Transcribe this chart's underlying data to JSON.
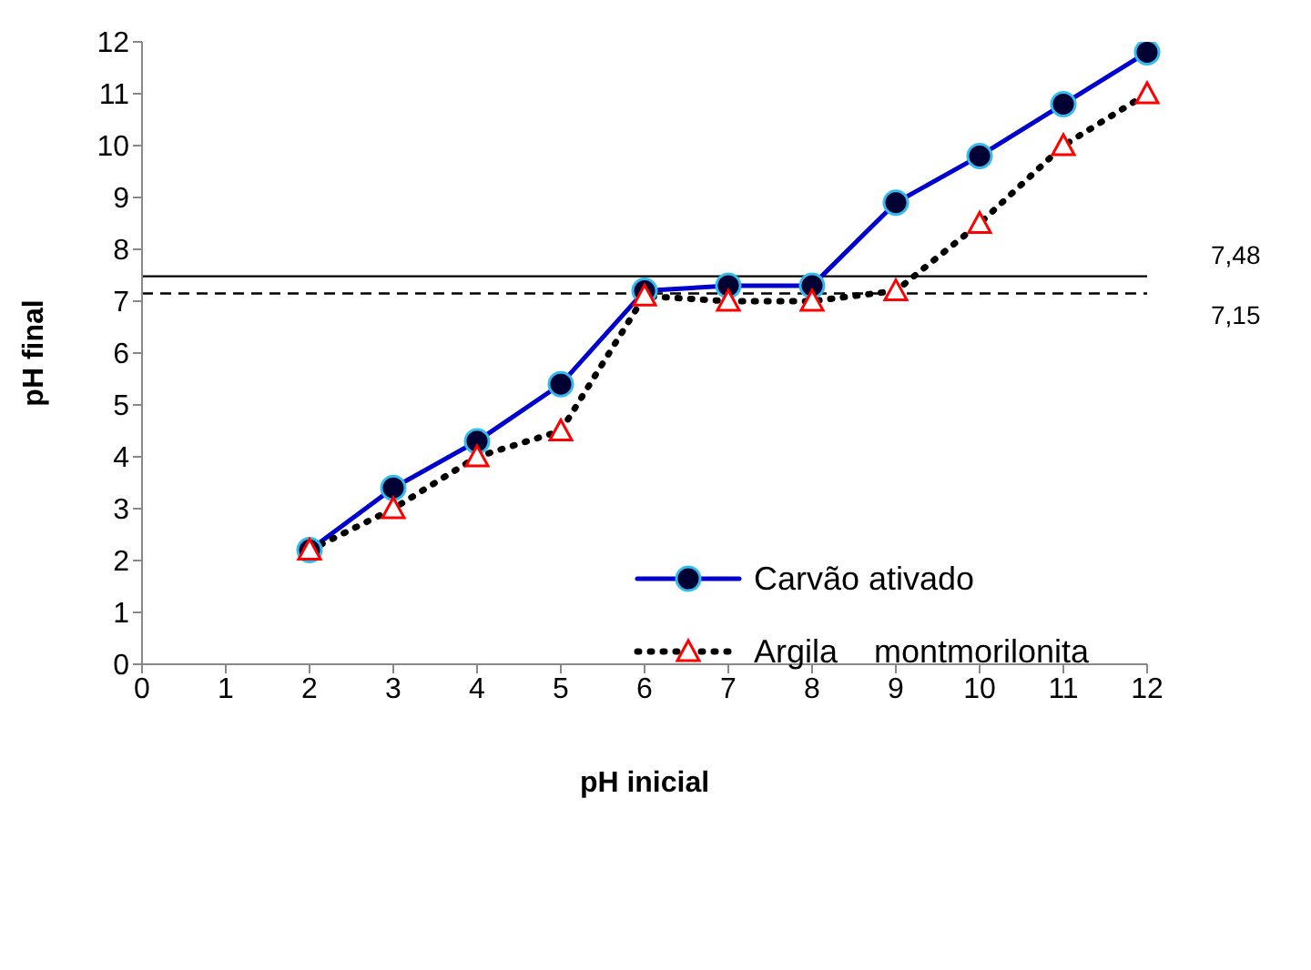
{
  "chart_data": {
    "type": "line",
    "xlabel": "pH inicial",
    "ylabel": "pH final",
    "x": [
      2,
      3,
      4,
      5,
      6,
      7,
      8,
      9,
      10,
      11,
      12
    ],
    "series": [
      {
        "name": "Carvão ativado",
        "color": "#0000cc",
        "marker": "circle",
        "line_style": "solid",
        "values": [
          2.2,
          3.4,
          4.3,
          5.4,
          7.2,
          7.3,
          7.3,
          8.9,
          9.8,
          10.8,
          11.8
        ]
      },
      {
        "name": "Argila    montmorilonita",
        "color": "#000000",
        "marker": "triangle",
        "line_style": "dotted",
        "values": [
          2.2,
          3.0,
          4.0,
          4.5,
          7.1,
          7.0,
          7.0,
          7.2,
          8.5,
          10.0,
          11.0
        ]
      }
    ],
    "xlim": [
      0,
      12
    ],
    "xticks": [
      0,
      1,
      2,
      3,
      4,
      5,
      6,
      7,
      8,
      9,
      10,
      11,
      12
    ],
    "ylim": [
      0,
      12
    ],
    "yticks": [
      0,
      1,
      2,
      3,
      4,
      5,
      6,
      7,
      8,
      9,
      10,
      11,
      12
    ],
    "ref_lines": [
      {
        "axis": "y",
        "value": 7.48,
        "label": "7,48",
        "line_style": "solid",
        "color": "#000000"
      },
      {
        "axis": "y",
        "value": 7.15,
        "label": "7,15",
        "line_style": "dashed",
        "color": "#000000"
      }
    ],
    "grid": false,
    "legend": "right"
  }
}
